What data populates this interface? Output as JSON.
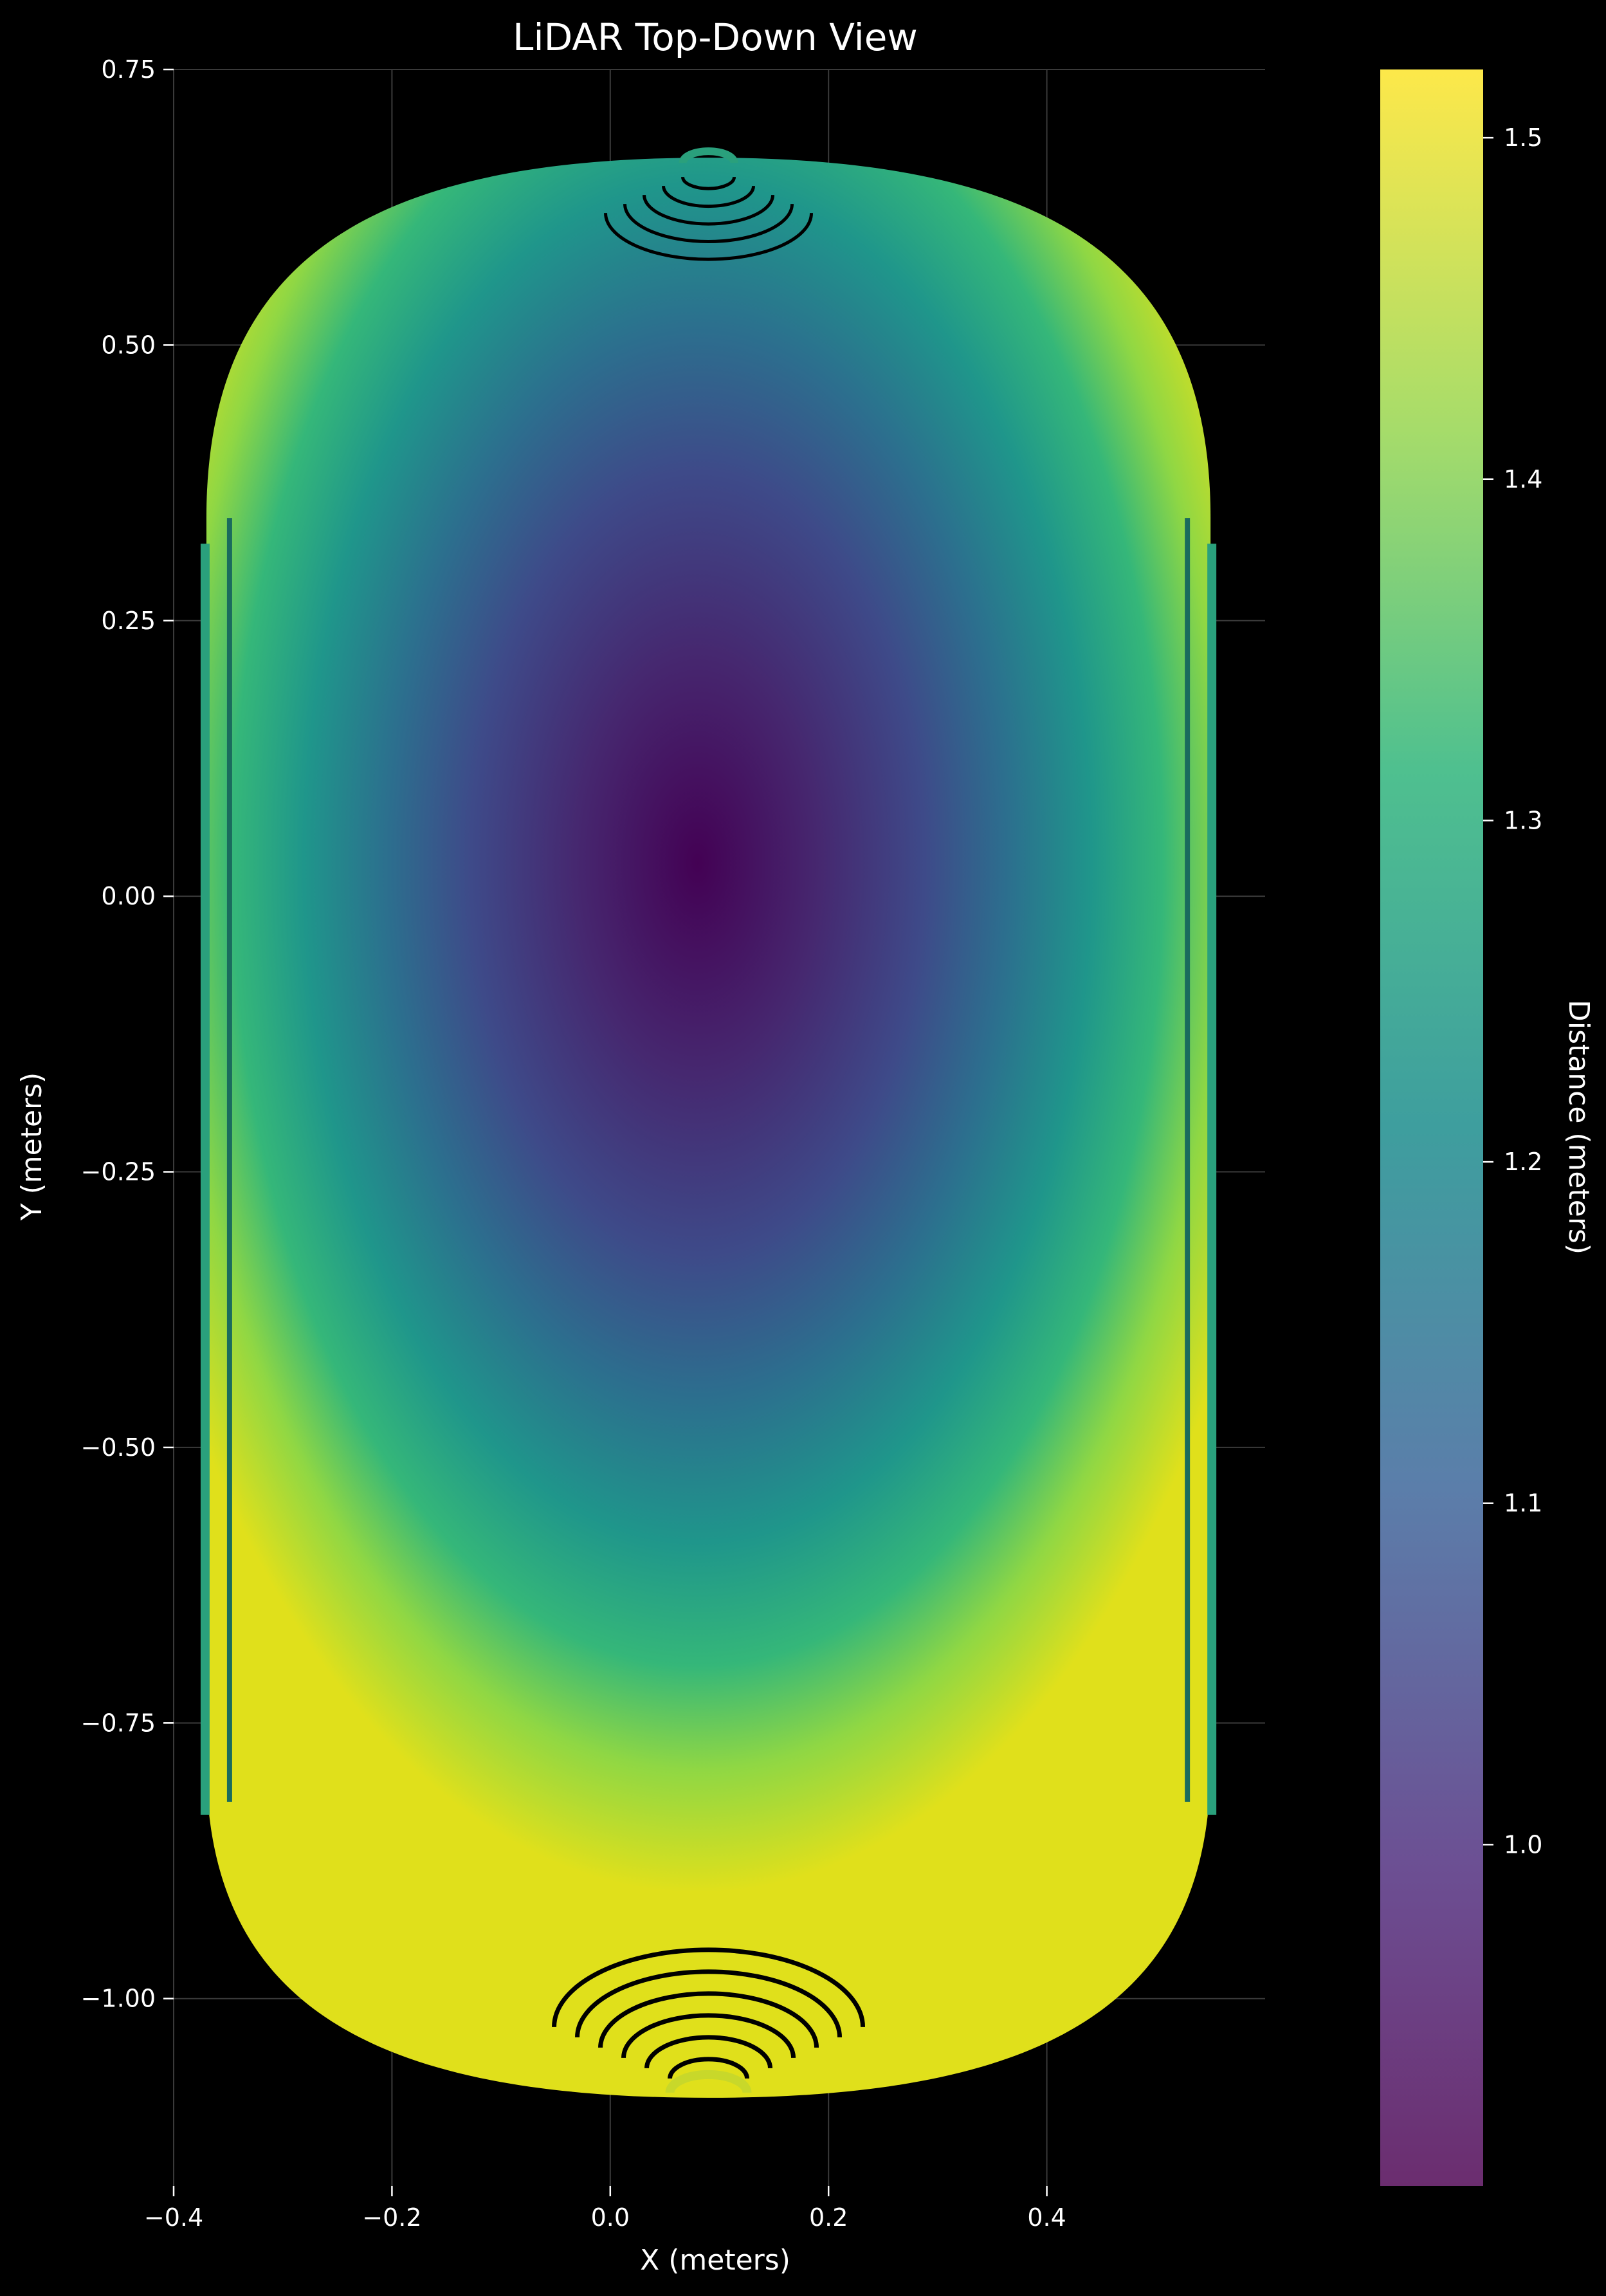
{
  "chart_data": {
    "type": "scatter",
    "title": "LiDAR Top-Down View",
    "xlabel": "X (meters)",
    "ylabel": "Y (meters)",
    "xlim": [
      -0.4,
      0.6
    ],
    "ylim": [
      -1.17,
      0.75
    ],
    "xticks": [
      -0.4,
      -0.2,
      0.0,
      0.2,
      0.4
    ],
    "xtick_labels": [
      "−0.4",
      "−0.2",
      "0.0",
      "0.2",
      "0.4"
    ],
    "yticks": [
      0.75,
      0.5,
      0.25,
      0.0,
      -0.25,
      -0.5,
      -0.75,
      -1.0
    ],
    "ytick_labels": [
      "0.75",
      "0.50",
      "0.25",
      "0.00",
      "−0.25",
      "−0.50",
      "−0.75",
      "−1.00"
    ],
    "grid": true,
    "background": "#000000",
    "colormap": "viridis",
    "point_cloud": {
      "shape": "capsule",
      "x_range": [
        -0.37,
        0.55
      ],
      "y_range": [
        -1.09,
        0.67
      ],
      "center": [
        0.08,
        0.03
      ],
      "description_of_edges": "rings of points at top and bottom ends"
    },
    "colorbar": {
      "label": "Distance (meters)",
      "range": [
        0.9,
        1.52
      ],
      "ticks": [
        1.0,
        1.1,
        1.2,
        1.3,
        1.4,
        1.5
      ],
      "tick_labels": [
        "1.0",
        "1.1",
        "1.2",
        "1.3",
        "1.4",
        "1.5"
      ]
    }
  }
}
